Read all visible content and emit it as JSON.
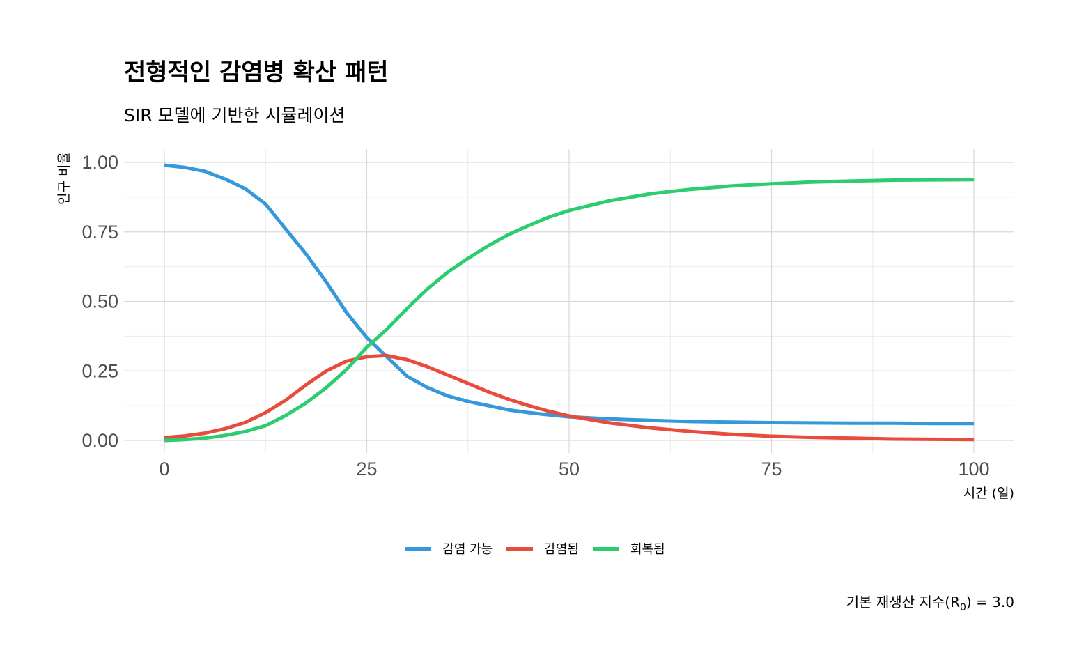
{
  "chart_data": {
    "type": "line",
    "title": "전형적인 감염병 확산 패턴",
    "subtitle": "SIR 모델에 기반한 시뮬레이션",
    "xlabel": "시간 (일)",
    "ylabel": "인구 비율",
    "xlim": [
      0,
      100
    ],
    "ylim": [
      0,
      1
    ],
    "x_ticks": [
      "0",
      "25",
      "50",
      "75",
      "100"
    ],
    "y_ticks": [
      "0.00",
      "0.25",
      "0.50",
      "0.75",
      "1.00"
    ],
    "x_tick_values": [
      0,
      25,
      50,
      75,
      100
    ],
    "y_tick_values": [
      0,
      0.25,
      0.5,
      0.75,
      1.0
    ],
    "grid": true,
    "legend_position": "bottom",
    "x": [
      0,
      2.5,
      5,
      7.5,
      10,
      12.5,
      15,
      17.5,
      20,
      22.5,
      25,
      27.5,
      30,
      32.5,
      35,
      37.5,
      40,
      42.5,
      45,
      47.5,
      50,
      55,
      60,
      65,
      70,
      75,
      80,
      85,
      90,
      95,
      100
    ],
    "series": [
      {
        "name": "감염 가능",
        "color": "#3498db",
        "values": [
          0.99,
          0.982,
          0.968,
          0.94,
          0.905,
          0.85,
          0.76,
          0.67,
          0.57,
          0.46,
          0.37,
          0.3,
          0.23,
          0.19,
          0.16,
          0.14,
          0.125,
          0.11,
          0.1,
          0.092,
          0.085,
          0.077,
          0.072,
          0.068,
          0.066,
          0.064,
          0.063,
          0.062,
          0.062,
          0.061,
          0.061
        ]
      },
      {
        "name": "감염됨",
        "color": "#e74c3c",
        "values": [
          0.01,
          0.016,
          0.026,
          0.042,
          0.065,
          0.1,
          0.145,
          0.2,
          0.25,
          0.285,
          0.301,
          0.305,
          0.29,
          0.265,
          0.235,
          0.205,
          0.175,
          0.148,
          0.125,
          0.105,
          0.088,
          0.063,
          0.045,
          0.032,
          0.022,
          0.015,
          0.011,
          0.008,
          0.005,
          0.004,
          0.003
        ]
      },
      {
        "name": "회복됨",
        "color": "#2ecc71",
        "values": [
          0.0,
          0.003,
          0.008,
          0.018,
          0.032,
          0.053,
          0.09,
          0.135,
          0.19,
          0.255,
          0.335,
          0.4,
          0.475,
          0.545,
          0.605,
          0.655,
          0.7,
          0.74,
          0.773,
          0.803,
          0.827,
          0.862,
          0.887,
          0.903,
          0.915,
          0.923,
          0.929,
          0.933,
          0.936,
          0.937,
          0.938
        ]
      }
    ],
    "annotation": {
      "prefix": "기본 재생산 지수(R",
      "subscript": "0",
      "suffix": ") = 3.0"
    }
  }
}
